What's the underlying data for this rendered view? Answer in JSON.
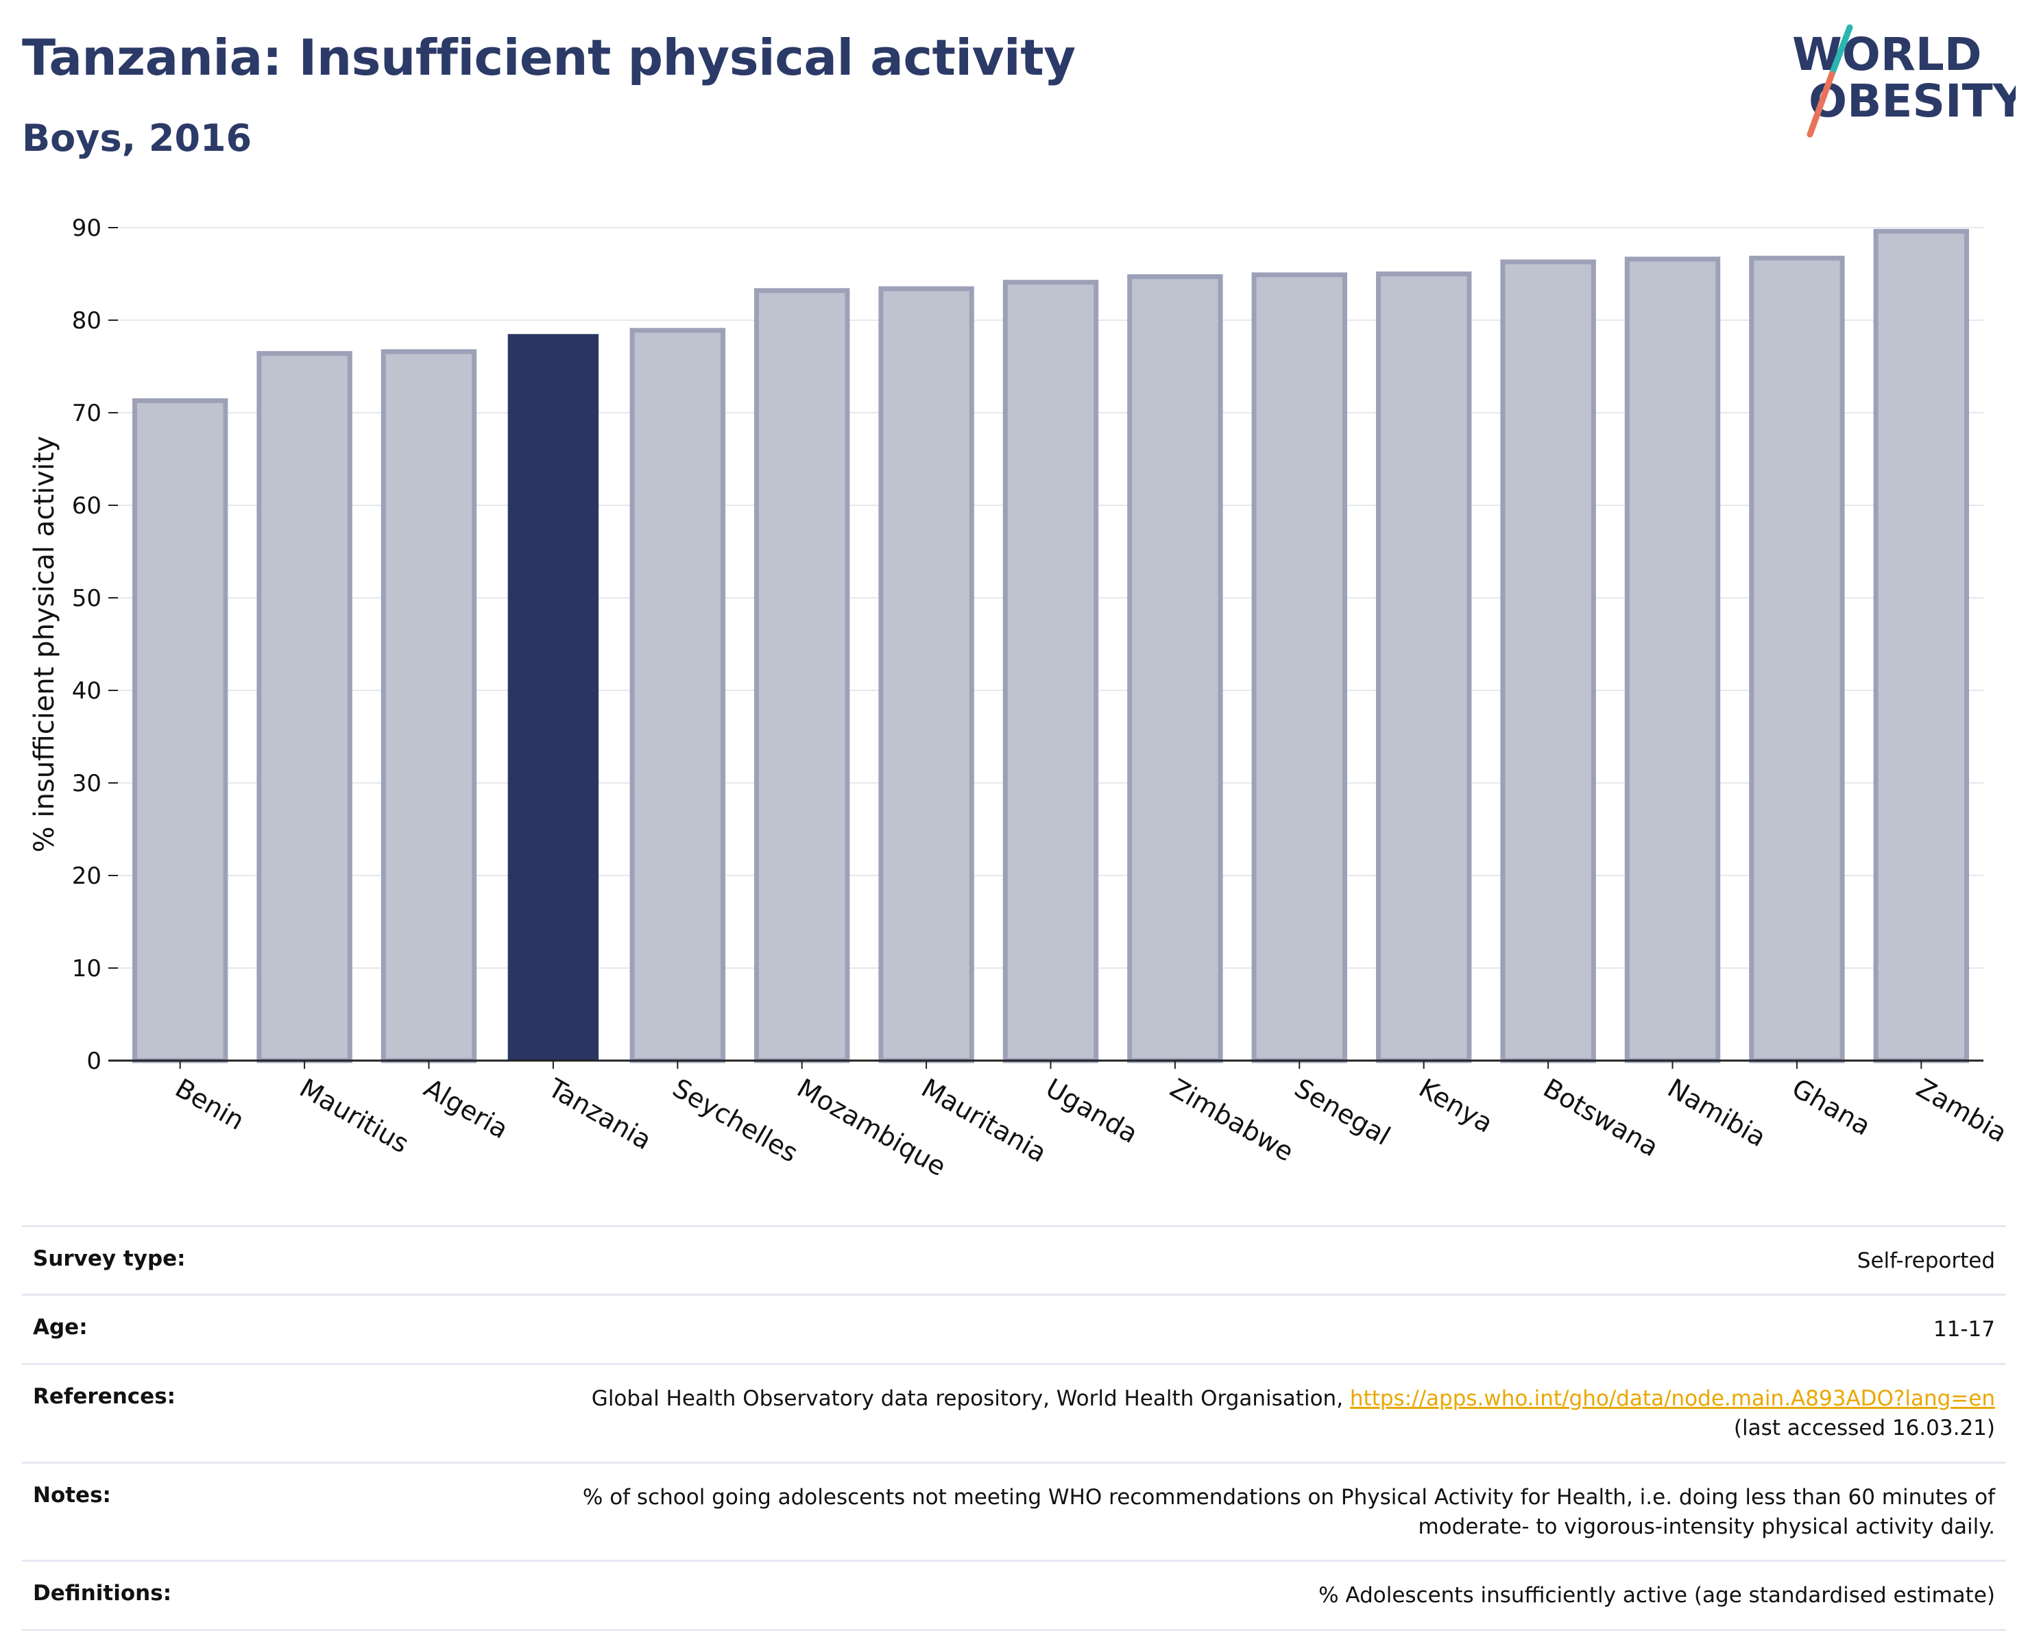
{
  "header": {
    "title": "Tanzania: Insufficient physical activity",
    "subtitle": "Boys, 2016"
  },
  "logo": {
    "line1": "WORLD",
    "line2": "OBESITY",
    "colors": {
      "text": "#2b3a67",
      "slash_top": "#2bb5b0",
      "slash_bottom": "#e8735a"
    }
  },
  "chart_data": {
    "type": "bar",
    "categories": [
      "Benin",
      "Mauritius",
      "Algeria",
      "Tanzania",
      "Seychelles",
      "Mozambique",
      "Mauritania",
      "Uganda",
      "Zimbabwe",
      "Senegal",
      "Kenya",
      "Botswana",
      "Namibia",
      "Ghana",
      "Zambia"
    ],
    "values": [
      71.3,
      76.4,
      76.6,
      78.5,
      78.9,
      83.2,
      83.4,
      84.1,
      84.7,
      84.9,
      85.0,
      86.3,
      86.6,
      86.7,
      89.6
    ],
    "highlight": "Tanzania",
    "ylabel": "% insufficient physical activity",
    "xlabel": "",
    "ylim": [
      0,
      90
    ],
    "yticks": [
      0,
      10,
      20,
      30,
      40,
      50,
      60,
      70,
      80,
      90
    ],
    "grid": true,
    "legend": "none",
    "colors": {
      "bar": "#bfc2cf",
      "bar_border": "#9da1b8",
      "highlight": "#2a3561",
      "grid": "#e6e8ee",
      "axis": "#222222"
    }
  },
  "info": {
    "rows": [
      {
        "key": "Survey type:",
        "lines": [
          "Self-reported"
        ]
      },
      {
        "key": "Age:",
        "lines": [
          "11-17"
        ]
      },
      {
        "key": "References:",
        "prefix": "Global Health Observatory data repository, World Health Organisation, ",
        "link": "https://apps.who.int/gho/data/node.main.A893ADO?lang=en",
        "lines": [
          "(last accessed 16.03.21)"
        ]
      },
      {
        "key": "Notes:",
        "lines": [
          "% of school going adolescents not meeting WHO recommendations on Physical Activity for Health, i.e. doing less than 60 minutes of",
          "moderate- to vigorous-intensity physical activity daily."
        ]
      },
      {
        "key": "Definitions:",
        "lines": [
          "% Adolescents insufficiently active (age standardised estimate)"
        ]
      }
    ]
  }
}
